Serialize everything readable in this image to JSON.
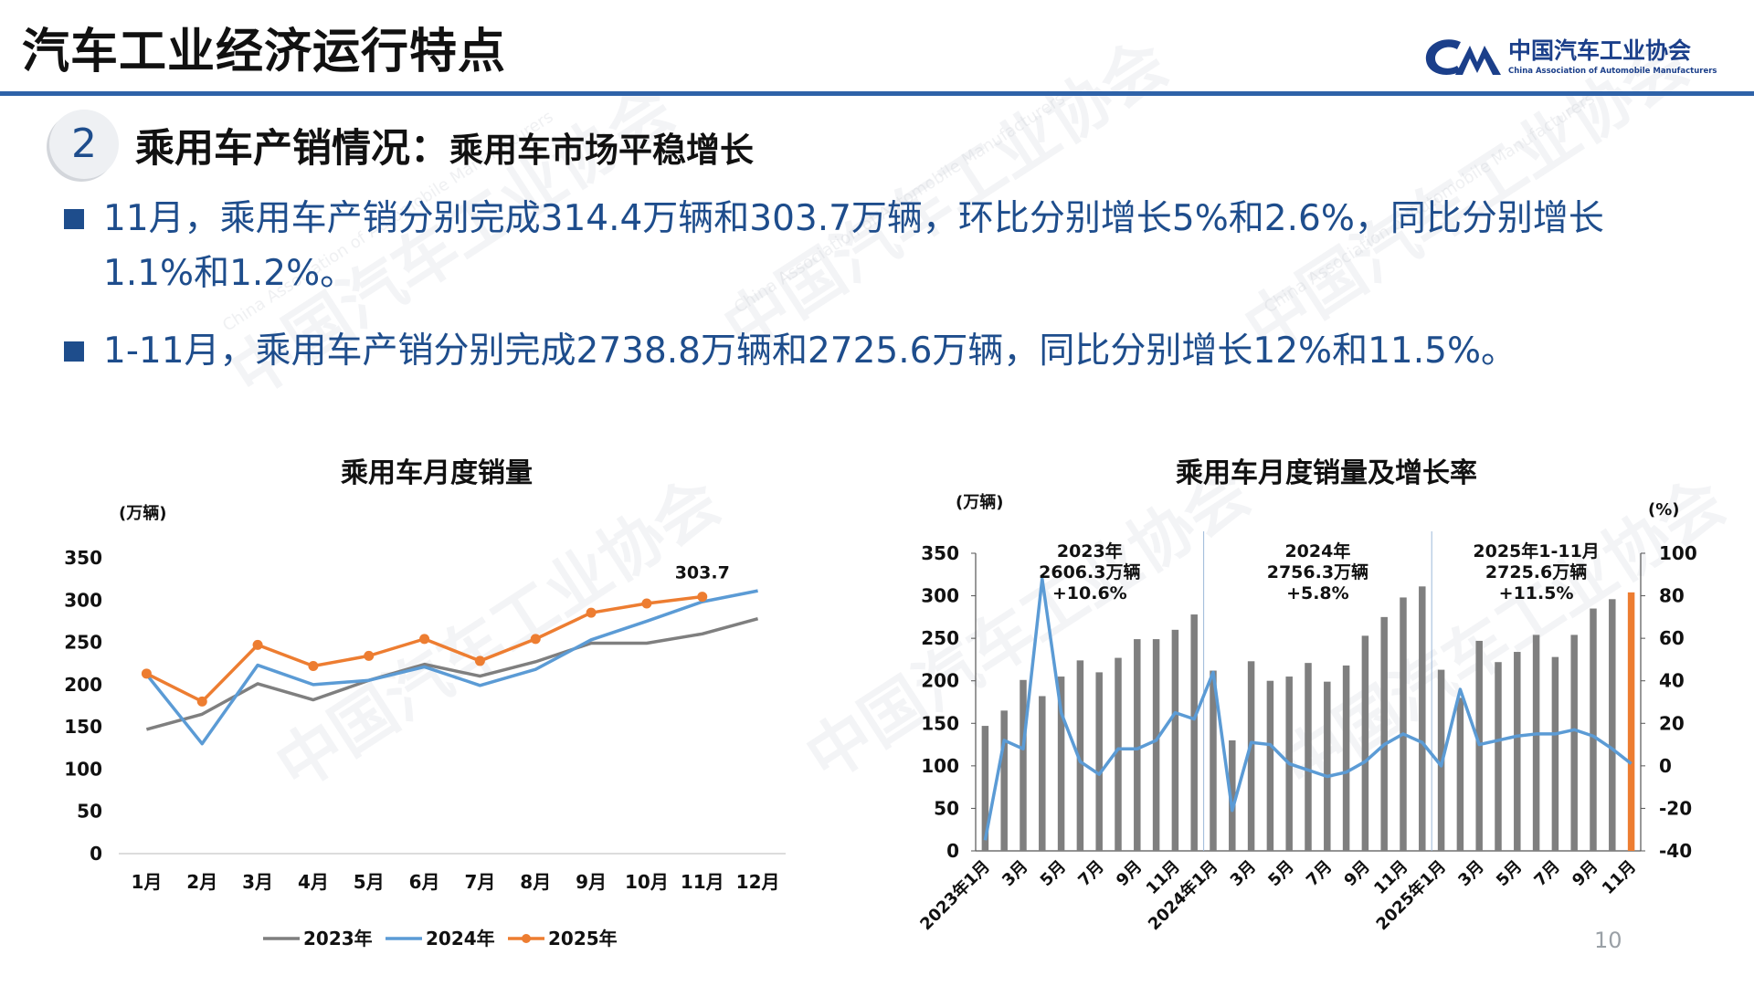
{
  "header": {
    "title": "汽车工业经济运行特点"
  },
  "logo": {
    "cn": "中国汽车工业协会",
    "en": "China Association of Automobile Manufacturers"
  },
  "section": {
    "number": "2",
    "title_main": "乘用车产销情况：",
    "title_sub": "乘用车市场平稳增长"
  },
  "bullets": [
    {
      "line1": "11月，乘用车产销分别完成314.4万辆和303.7万辆，环比分别增长5%和2.6%，同比分别增长",
      "line2": "1.1%和1.2%。"
    },
    {
      "line1": "1-11月，乘用车产销分别完成2738.8万辆和2725.6万辆，同比分别增长12%和11.5%。"
    }
  ],
  "page_number": "10",
  "colors": {
    "accent": "#2e62a8",
    "text_blue": "#1e4d8c",
    "s2023": "#7f7f7f",
    "s2024": "#5b9bd5",
    "s2025": "#ed7d31",
    "bar": "#7f7f7f"
  },
  "chart_data": [
    {
      "type": "line",
      "title": "乘用车月度销量",
      "ylabel": "(万辆)",
      "categories": [
        "1月",
        "2月",
        "3月",
        "4月",
        "5月",
        "6月",
        "7月",
        "8月",
        "9月",
        "10月",
        "11月",
        "12月"
      ],
      "ylim": [
        0,
        350
      ],
      "yticks": [
        0,
        50,
        100,
        150,
        200,
        250,
        300,
        350
      ],
      "legend": "bottom",
      "series": [
        {
          "name": "2023年",
          "color": "#7f7f7f",
          "values": [
            147,
            165,
            201,
            182,
            205,
            224,
            210,
            227,
            249,
            249,
            260,
            278
          ]
        },
        {
          "name": "2024年",
          "color": "#5b9bd5",
          "values": [
            212,
            130,
            223,
            200,
            205,
            221,
            199,
            218,
            253,
            275,
            298,
            311
          ]
        },
        {
          "name": "2025年",
          "color": "#ed7d31",
          "markers": true,
          "values": [
            213,
            180,
            247,
            222,
            234,
            254,
            228,
            254,
            285,
            296,
            304,
            null
          ]
        }
      ],
      "annotations": [
        {
          "text": "303.7",
          "category": "11月",
          "series": "2025年"
        }
      ]
    },
    {
      "type": "bar+line",
      "title": "乘用车月度销量及增长率",
      "ylabel_left": "(万辆)",
      "ylabel_right": "(%)",
      "ylim_left": [
        0,
        350
      ],
      "yticks_left": [
        0,
        50,
        100,
        150,
        200,
        250,
        300,
        350
      ],
      "ylim_right": [
        -40,
        100
      ],
      "yticks_right": [
        -40,
        -20,
        0,
        20,
        40,
        60,
        80,
        100
      ],
      "x_labels": [
        "2023年1月",
        "",
        "3月",
        "",
        "5月",
        "",
        "7月",
        "",
        "9月",
        "",
        "11月",
        "",
        "2024年1月",
        "",
        "3月",
        "",
        "5月",
        "",
        "7月",
        "",
        "9月",
        "",
        "11月",
        "",
        "2025年1月",
        "",
        "3月",
        "",
        "5月",
        "",
        "7月",
        "",
        "9月",
        "",
        "11月"
      ],
      "bar_values": [
        147,
        165,
        201,
        182,
        205,
        224,
        210,
        227,
        249,
        249,
        260,
        278,
        212,
        130,
        223,
        200,
        205,
        221,
        199,
        218,
        253,
        275,
        298,
        311,
        213,
        180,
        247,
        222,
        234,
        254,
        228,
        254,
        285,
        296,
        304
      ],
      "growth_values": [
        -35,
        12,
        8,
        88,
        25,
        2,
        -4,
        8,
        8,
        12,
        25,
        22,
        44,
        -21,
        11,
        10,
        1,
        -2,
        -5,
        -3,
        2,
        10,
        15,
        11,
        0,
        36,
        10,
        12,
        14,
        15,
        15,
        17,
        14,
        8,
        1
      ],
      "highlight_last_bar_color": "#ed7d31",
      "dividers_after_index": [
        11,
        23
      ],
      "group_labels": [
        {
          "title": "2023年",
          "total": "2606.3万辆",
          "growth": "+10.6%"
        },
        {
          "title": "2024年",
          "total": "2756.3万辆",
          "growth": "+5.8%"
        },
        {
          "title": "2025年1-11月",
          "total": "2725.6万辆",
          "growth": "+11.5%"
        }
      ]
    }
  ]
}
